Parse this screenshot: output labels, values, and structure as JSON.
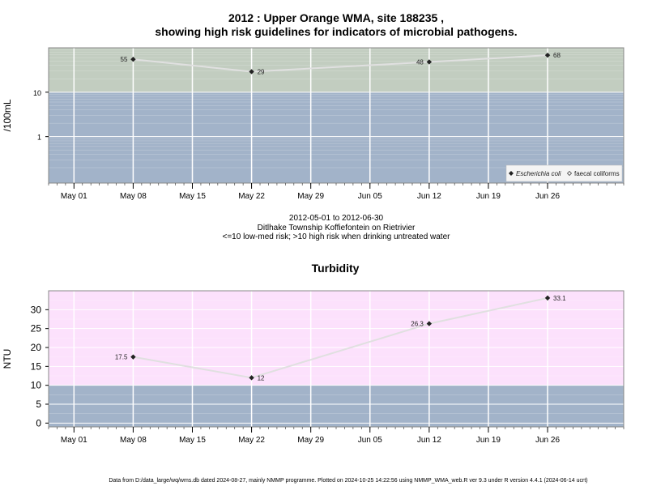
{
  "header": {
    "title_line1": "2012 : Upper Orange WMA, site 188235 ,",
    "title_line2": "showing high risk guidelines for indicators of microbial pathogens."
  },
  "colors": {
    "low_risk_band": "#a2b3c9",
    "high_risk_band_microbial": "#c2cdc0",
    "high_risk_band_turbidity": "#fce1fc",
    "series_line": "#e0e0e0",
    "marker": "#222222",
    "grid": "#ffffff"
  },
  "middle_text": {
    "date_range": "2012-05-01 to 2012-06-30",
    "location": "Ditlhake Township Koffiefontein on Rietrivier",
    "risk_note": "<=10 low-med risk; >10 high risk when drinking untreated water"
  },
  "footer": {
    "text": "Data from D:/data_large/wq/wms.db dated 2024-08-27, mainly NMMP programme. Plotted on 2024-10-25 14:22:56 using NMMP_WMA_web.R ver 9.3 under R version 4.4.1 (2024-06-14 ucrt)"
  },
  "chart_data": [
    {
      "type": "line",
      "title": "",
      "ylabel": "/100mL",
      "xlabel": "",
      "y_scale": "log",
      "ylim": [
        0.09,
        100
      ],
      "y_ticks": [
        1,
        10
      ],
      "y_tick_labels": [
        "1",
        "10"
      ],
      "x_ticks": [
        "2012-05-01",
        "2012-05-08",
        "2012-05-15",
        "2012-05-22",
        "2012-05-29",
        "2012-06-05",
        "2012-06-12",
        "2012-06-19",
        "2012-06-26"
      ],
      "x_tick_labels": [
        "May 01",
        "May 08",
        "May 15",
        "May 22",
        "May 29",
        "Jun 05",
        "Jun 12",
        "Jun 19",
        "Jun 26"
      ],
      "xlim": [
        "2012-04-28",
        "2012-07-05"
      ],
      "threshold": 10,
      "legend_position": "bottom-right",
      "legend": [
        {
          "label": "Escherichia coli",
          "marker": "filled-diamond"
        },
        {
          "label": "faecal coliforms",
          "marker": "open-diamond"
        }
      ],
      "series": [
        {
          "name": "Escherichia coli",
          "x": [
            "2012-05-08",
            "2012-05-22",
            "2012-06-12",
            "2012-06-26"
          ],
          "values": [
            55,
            29,
            48,
            68
          ],
          "labels": [
            "55",
            "29",
            "48",
            "68"
          ]
        }
      ]
    },
    {
      "type": "line",
      "title": "Turbidity",
      "ylabel": "NTU",
      "xlabel": "",
      "ylim": [
        -1,
        35
      ],
      "y_ticks": [
        0,
        5,
        10,
        15,
        20,
        25,
        30
      ],
      "y_tick_labels": [
        "0",
        "5",
        "10",
        "15",
        "20",
        "25",
        "30"
      ],
      "x_ticks": [
        "2012-05-01",
        "2012-05-08",
        "2012-05-15",
        "2012-05-22",
        "2012-05-29",
        "2012-06-05",
        "2012-06-12",
        "2012-06-19",
        "2012-06-26"
      ],
      "x_tick_labels": [
        "May 01",
        "May 08",
        "May 15",
        "May 22",
        "May 29",
        "Jun 05",
        "Jun 12",
        "Jun 19",
        "Jun 26"
      ],
      "xlim": [
        "2012-04-28",
        "2012-07-05"
      ],
      "threshold": 10,
      "series": [
        {
          "name": "",
          "x": [
            "2012-05-08",
            "2012-05-22",
            "2012-06-12",
            "2012-06-26"
          ],
          "values": [
            17.5,
            12,
            26.3,
            33.1
          ],
          "labels": [
            "17.5",
            "12",
            "26.3",
            "33.1"
          ]
        }
      ]
    }
  ]
}
